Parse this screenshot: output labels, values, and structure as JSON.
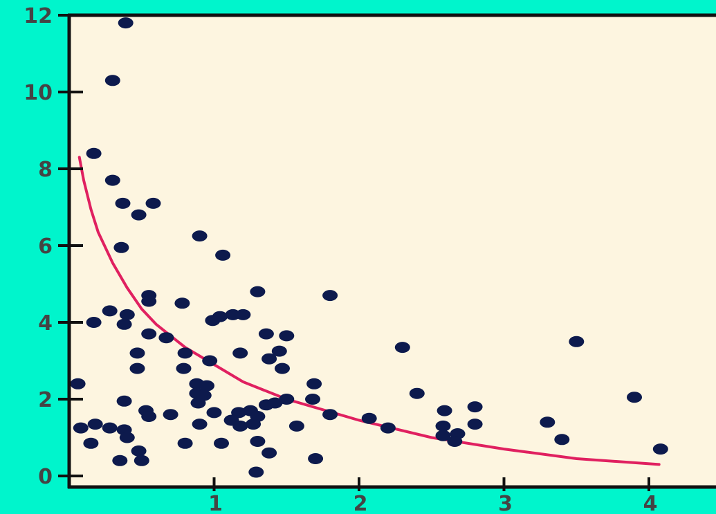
{
  "chart_data": {
    "type": "scatter",
    "title": "",
    "xlabel": "",
    "ylabel": "",
    "xlim": [
      0,
      4.4
    ],
    "ylim": [
      0,
      12
    ],
    "xticks": [
      "1",
      "2",
      "3",
      "4"
    ],
    "yticks": [
      "0",
      "2",
      "4",
      "6",
      "8",
      "10",
      "12"
    ],
    "grid": false,
    "legend": "none",
    "colors": {
      "background": "#00f5cc",
      "plot_area": "#fdf5e0",
      "points": "#0d1a4d",
      "trend": "#e02060",
      "axis": "#111111"
    },
    "series": [
      {
        "type": "scatter",
        "points": [
          [
            0.39,
            11.8
          ],
          [
            0.3,
            10.3
          ],
          [
            0.17,
            8.4
          ],
          [
            0.3,
            7.7
          ],
          [
            0.37,
            7.1
          ],
          [
            0.58,
            7.1
          ],
          [
            0.48,
            6.8
          ],
          [
            0.9,
            6.25
          ],
          [
            0.36,
            5.95
          ],
          [
            1.06,
            5.75
          ],
          [
            1.3,
            4.8
          ],
          [
            1.8,
            4.7
          ],
          [
            0.55,
            4.7
          ],
          [
            0.55,
            4.55
          ],
          [
            0.78,
            4.5
          ],
          [
            0.28,
            4.3
          ],
          [
            0.4,
            4.2
          ],
          [
            0.17,
            4.0
          ],
          [
            0.38,
            3.95
          ],
          [
            0.99,
            4.05
          ],
          [
            1.04,
            4.15
          ],
          [
            1.13,
            4.2
          ],
          [
            1.2,
            4.2
          ],
          [
            0.55,
            3.7
          ],
          [
            0.67,
            3.6
          ],
          [
            1.36,
            3.7
          ],
          [
            1.5,
            3.65
          ],
          [
            0.47,
            3.2
          ],
          [
            0.8,
            3.2
          ],
          [
            1.18,
            3.2
          ],
          [
            1.45,
            3.25
          ],
          [
            0.97,
            3.0
          ],
          [
            1.38,
            3.05
          ],
          [
            0.47,
            2.8
          ],
          [
            0.79,
            2.8
          ],
          [
            1.47,
            2.8
          ],
          [
            2.3,
            3.35
          ],
          [
            3.5,
            3.5
          ],
          [
            0.06,
            2.4
          ],
          [
            0.88,
            2.4
          ],
          [
            0.95,
            2.35
          ],
          [
            1.69,
            2.4
          ],
          [
            0.88,
            2.15
          ],
          [
            0.93,
            2.1
          ],
          [
            2.4,
            2.15
          ],
          [
            1.5,
            2.0
          ],
          [
            1.68,
            2.0
          ],
          [
            3.9,
            2.05
          ],
          [
            0.38,
            1.95
          ],
          [
            0.89,
            1.9
          ],
          [
            1.36,
            1.85
          ],
          [
            1.42,
            1.9
          ],
          [
            2.8,
            1.8
          ],
          [
            0.53,
            1.7
          ],
          [
            2.59,
            1.7
          ],
          [
            0.55,
            1.55
          ],
          [
            0.7,
            1.6
          ],
          [
            1.0,
            1.65
          ],
          [
            1.17,
            1.65
          ],
          [
            1.25,
            1.7
          ],
          [
            1.8,
            1.6
          ],
          [
            2.07,
            1.5
          ],
          [
            1.3,
            1.55
          ],
          [
            1.12,
            1.45
          ],
          [
            1.18,
            1.3
          ],
          [
            1.27,
            1.35
          ],
          [
            1.57,
            1.3
          ],
          [
            0.08,
            1.25
          ],
          [
            0.18,
            1.35
          ],
          [
            0.28,
            1.25
          ],
          [
            0.38,
            1.2
          ],
          [
            0.9,
            1.35
          ],
          [
            2.2,
            1.25
          ],
          [
            2.58,
            1.3
          ],
          [
            2.8,
            1.35
          ],
          [
            3.3,
            1.4
          ],
          [
            2.58,
            1.05
          ],
          [
            2.68,
            1.1
          ],
          [
            0.4,
            1.0
          ],
          [
            0.15,
            0.85
          ],
          [
            0.8,
            0.85
          ],
          [
            1.05,
            0.85
          ],
          [
            1.3,
            0.9
          ],
          [
            3.4,
            0.95
          ],
          [
            0.48,
            0.65
          ],
          [
            1.38,
            0.6
          ],
          [
            4.08,
            0.7
          ],
          [
            0.35,
            0.4
          ],
          [
            0.5,
            0.4
          ],
          [
            1.7,
            0.45
          ],
          [
            1.29,
            0.1
          ],
          [
            2.66,
            0.9
          ]
        ]
      },
      {
        "type": "line",
        "points": [
          [
            0.07,
            8.3
          ],
          [
            0.1,
            7.7
          ],
          [
            0.15,
            6.95
          ],
          [
            0.2,
            6.35
          ],
          [
            0.3,
            5.55
          ],
          [
            0.4,
            4.9
          ],
          [
            0.5,
            4.35
          ],
          [
            0.6,
            3.95
          ],
          [
            0.8,
            3.35
          ],
          [
            1.0,
            2.9
          ],
          [
            1.2,
            2.45
          ],
          [
            1.5,
            2.0
          ],
          [
            2.0,
            1.45
          ],
          [
            2.5,
            1.0
          ],
          [
            3.0,
            0.7
          ],
          [
            3.5,
            0.45
          ],
          [
            4.07,
            0.3
          ]
        ]
      }
    ]
  }
}
